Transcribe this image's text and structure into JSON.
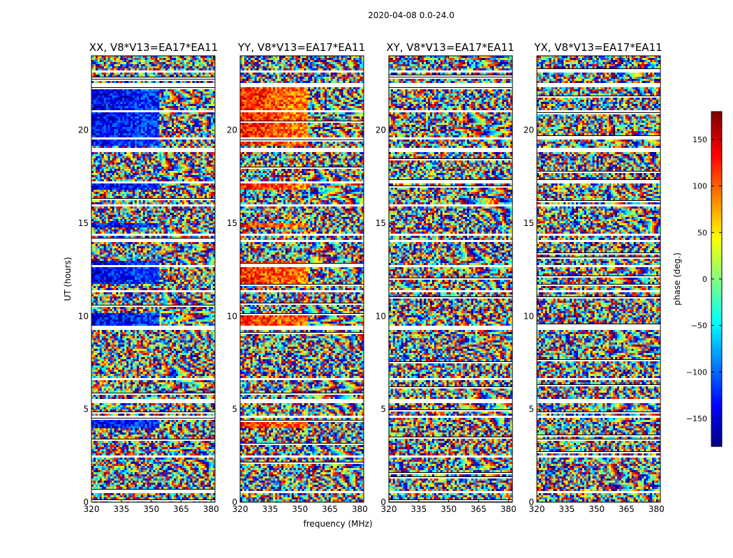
{
  "chart_data": {
    "type": "heatmap",
    "suptitle": "2020-04-08 0.0-24.0",
    "xlabel": "frequency (MHz)",
    "ylabel": "UT (hours)",
    "xlim": [
      320,
      382
    ],
    "ylim": [
      0,
      24
    ],
    "x_ticks": [
      "320",
      "335",
      "350",
      "365",
      "380"
    ],
    "y_ticks": [
      "0",
      "5",
      "10",
      "15",
      "20"
    ],
    "panels": [
      {
        "title": "XX, V8*V13=EA17*EA11",
        "coherent_sign": -1
      },
      {
        "title": "YY, V8*V13=EA17*EA11",
        "coherent_sign": 1
      },
      {
        "title": "XY, V8*V13=EA17*EA11",
        "coherent_sign": 0
      },
      {
        "title": "YX, V8*V13=EA17*EA11",
        "coherent_sign": 0
      }
    ],
    "colorbar": {
      "label": "phase (deg.)",
      "range": [
        -180,
        180
      ],
      "ticks": [
        "150",
        "100",
        "50",
        "0",
        "−50",
        "−100",
        "−150"
      ],
      "colormap": "jet"
    },
    "blank_time_bands_hours": [
      [
        0.5,
        0.62
      ],
      [
        2.4,
        2.55
      ],
      [
        4.6,
        4.72
      ],
      [
        5.4,
        5.55
      ],
      [
        6.6,
        6.7
      ],
      [
        9.3,
        9.55
      ],
      [
        11.3,
        11.4
      ],
      [
        12.7,
        12.8
      ],
      [
        14.1,
        14.2
      ],
      [
        14.4,
        14.5
      ],
      [
        16.0,
        16.1
      ],
      [
        17.2,
        17.3
      ],
      [
        18.9,
        19.05
      ],
      [
        19.6,
        19.7
      ],
      [
        21.0,
        21.1
      ],
      [
        22.4,
        22.55
      ],
      [
        23.2,
        23.3
      ]
    ]
  }
}
